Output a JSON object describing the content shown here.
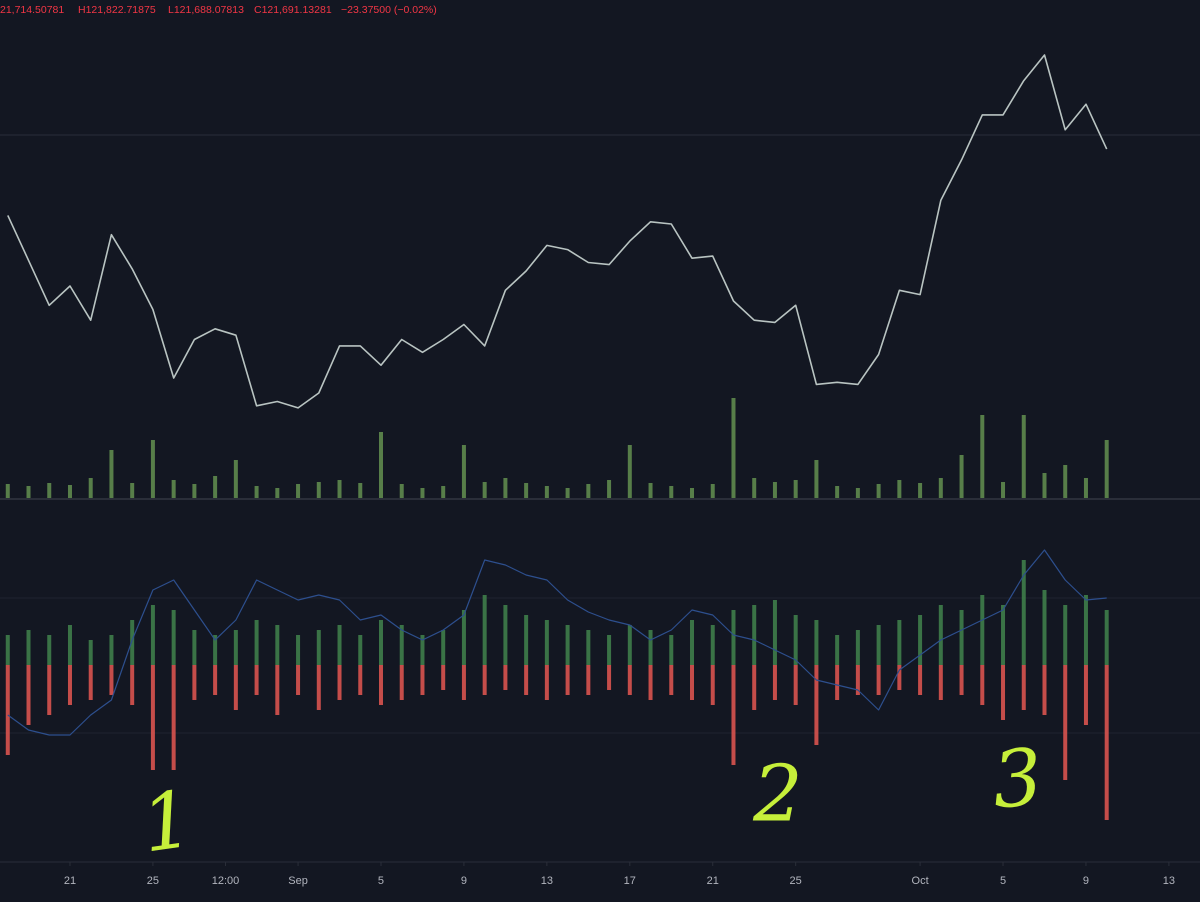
{
  "chart_data": [
    {
      "type": "line",
      "header": [
        "21,714.50781",
        "H121,822.71875",
        "L121,688.07813",
        "C121,691.13281",
        "−23.37500 (−0.02%)"
      ],
      "annotations": [
        "1",
        "2",
        "3"
      ],
      "x": [
        "08-18",
        "08-19",
        "08-20",
        "08-21",
        "08-22",
        "08-23",
        "08-24",
        "08-25",
        "08-26",
        "08-27",
        "08-28",
        "08-29",
        "08-30",
        "08-31",
        "09-01",
        "09-02",
        "09-03",
        "09-04",
        "09-05",
        "09-06",
        "09-07",
        "09-08",
        "09-09",
        "09-10",
        "09-11",
        "09-12",
        "09-13",
        "09-14",
        "09-15",
        "09-16",
        "09-17",
        "09-18",
        "09-19",
        "09-20",
        "09-21",
        "09-22",
        "09-23",
        "09-24",
        "09-25",
        "09-26",
        "09-27",
        "09-28",
        "09-29",
        "09-30",
        "10-01",
        "10-02",
        "10-03",
        "10-04",
        "10-05",
        "10-06",
        "10-07",
        "10-08",
        "10-09",
        "10-10"
      ],
      "xlim": [
        "08-17 15:00",
        "10-14 12:00"
      ],
      "ylim": [
        104590,
        127870
      ],
      "series": [
        {
          "color": "#b9c4c2",
          "values": [
            117800,
            115700,
            113600,
            114500,
            112900,
            116900,
            115300,
            113400,
            110200,
            112000,
            112500,
            112200,
            108900,
            109100,
            108800,
            109500,
            111700,
            111700,
            110800,
            112000,
            111400,
            112000,
            112700,
            111700,
            114300,
            115200,
            116400,
            116200,
            115600,
            115500,
            116600,
            117500,
            117400,
            115800,
            115900,
            113800,
            112900,
            112800,
            113600,
            109900,
            110000,
            109900,
            111300,
            114300,
            114100,
            118500,
            120400,
            122500,
            122500,
            124100,
            125300,
            121800,
            123000,
            120900
          ]
        }
      ]
    },
    {
      "type": "bar",
      "x": [
        "08-18",
        "08-19",
        "08-20",
        "08-21",
        "08-22",
        "08-23",
        "08-24",
        "08-25",
        "08-26",
        "08-27",
        "08-28",
        "08-29",
        "08-30",
        "08-31",
        "09-01",
        "09-02",
        "09-03",
        "09-04",
        "09-05",
        "09-06",
        "09-07",
        "09-08",
        "09-09",
        "09-10",
        "09-11",
        "09-12",
        "09-13",
        "09-14",
        "09-15",
        "09-16",
        "09-17",
        "09-18",
        "09-19",
        "09-20",
        "09-21",
        "09-22",
        "09-23",
        "09-24",
        "09-25",
        "09-26",
        "09-27",
        "09-28",
        "09-29",
        "09-30",
        "10-01",
        "10-02",
        "10-03",
        "10-04",
        "10-05",
        "10-06",
        "10-07",
        "10-08",
        "10-09",
        "10-10"
      ],
      "xlim": [
        "08-17 15:00",
        "10-14 12:00"
      ],
      "ylim": [
        0,
        100
      ],
      "series": [
        {
          "color": "#5f8a4e",
          "values": [
            14,
            12,
            15,
            13,
            20,
            48,
            15,
            58,
            18,
            14,
            22,
            38,
            12,
            10,
            14,
            16,
            18,
            15,
            66,
            14,
            10,
            12,
            53,
            16,
            20,
            15,
            12,
            10,
            14,
            18,
            53,
            15,
            12,
            10,
            14,
            100,
            20,
            16,
            18,
            38,
            12,
            10,
            14,
            18,
            15,
            20,
            43,
            83,
            16,
            83,
            25,
            33,
            20,
            58
          ]
        }
      ]
    },
    {
      "type": "bar",
      "x": [
        "08-18",
        "08-19",
        "08-20",
        "08-21",
        "08-22",
        "08-23",
        "08-24",
        "08-25",
        "08-26",
        "08-27",
        "08-28",
        "08-29",
        "08-30",
        "08-31",
        "09-01",
        "09-02",
        "09-03",
        "09-04",
        "09-05",
        "09-06",
        "09-07",
        "09-08",
        "09-09",
        "09-10",
        "09-11",
        "09-12",
        "09-13",
        "09-14",
        "09-15",
        "09-16",
        "09-17",
        "09-18",
        "09-19",
        "09-20",
        "09-21",
        "09-22",
        "09-23",
        "09-24",
        "09-25",
        "09-26",
        "09-27",
        "09-28",
        "09-29",
        "09-30",
        "10-01",
        "10-02",
        "10-03",
        "10-04",
        "10-05",
        "10-06",
        "10-07",
        "10-08",
        "10-09",
        "10-10"
      ],
      "xlim": [
        "08-17 15:00",
        "10-14 12:00"
      ],
      "ylim": [
        -165,
        165
      ],
      "xticks": [
        {
          "value": "08-21",
          "label": "21"
        },
        {
          "value": "08-25",
          "label": "25"
        },
        {
          "value": "08-28 12:00",
          "label": "12:00"
        },
        {
          "value": "09-01",
          "label": "Sep"
        },
        {
          "value": "09-05",
          "label": "5"
        },
        {
          "value": "09-09",
          "label": "9"
        },
        {
          "value": "09-13",
          "label": "13"
        },
        {
          "value": "09-17",
          "label": "17"
        },
        {
          "value": "09-21",
          "label": "21"
        },
        {
          "value": "09-25",
          "label": "25"
        },
        {
          "value": "10-01",
          "label": "Oct"
        },
        {
          "value": "10-05",
          "label": "5"
        },
        {
          "value": "10-09",
          "label": "9"
        },
        {
          "value": "10-13",
          "label": "13"
        }
      ],
      "series": [
        {
          "color": "#3f7d4a",
          "values": [
            30,
            35,
            30,
            40,
            25,
            30,
            45,
            60,
            55,
            35,
            30,
            35,
            45,
            40,
            30,
            35,
            40,
            30,
            45,
            40,
            30,
            35,
            55,
            70,
            60,
            50,
            45,
            40,
            35,
            30,
            40,
            35,
            30,
            45,
            40,
            55,
            60,
            65,
            50,
            45,
            30,
            35,
            40,
            45,
            50,
            60,
            55,
            70,
            60,
            105,
            75,
            60,
            70,
            55
          ]
        },
        {
          "color": "#d9534f",
          "values": [
            -90,
            -60,
            -50,
            -40,
            -35,
            -30,
            -40,
            -105,
            -105,
            -35,
            -30,
            -45,
            -30,
            -50,
            -30,
            -45,
            -35,
            -30,
            -40,
            -35,
            -30,
            -25,
            -35,
            -30,
            -25,
            -30,
            -35,
            -30,
            -30,
            -25,
            -30,
            -35,
            -30,
            -35,
            -40,
            -100,
            -45,
            -35,
            -40,
            -80,
            -35,
            -30,
            -30,
            -25,
            -30,
            -35,
            -30,
            -40,
            -55,
            -45,
            -50,
            -115,
            -60,
            -155
          ]
        },
        {
          "type": "line",
          "color": "#2d4f8e",
          "values": [
            -50,
            -65,
            -70,
            -70,
            -50,
            -35,
            25,
            75,
            85,
            55,
            25,
            45,
            85,
            75,
            65,
            70,
            65,
            45,
            50,
            35,
            25,
            35,
            50,
            105,
            100,
            90,
            85,
            65,
            53,
            45,
            40,
            25,
            35,
            55,
            50,
            30,
            25,
            15,
            5,
            -15,
            -20,
            -25,
            -45,
            -5,
            10,
            25,
            35,
            45,
            55,
            90,
            115,
            85,
            65,
            67
          ]
        }
      ]
    }
  ]
}
